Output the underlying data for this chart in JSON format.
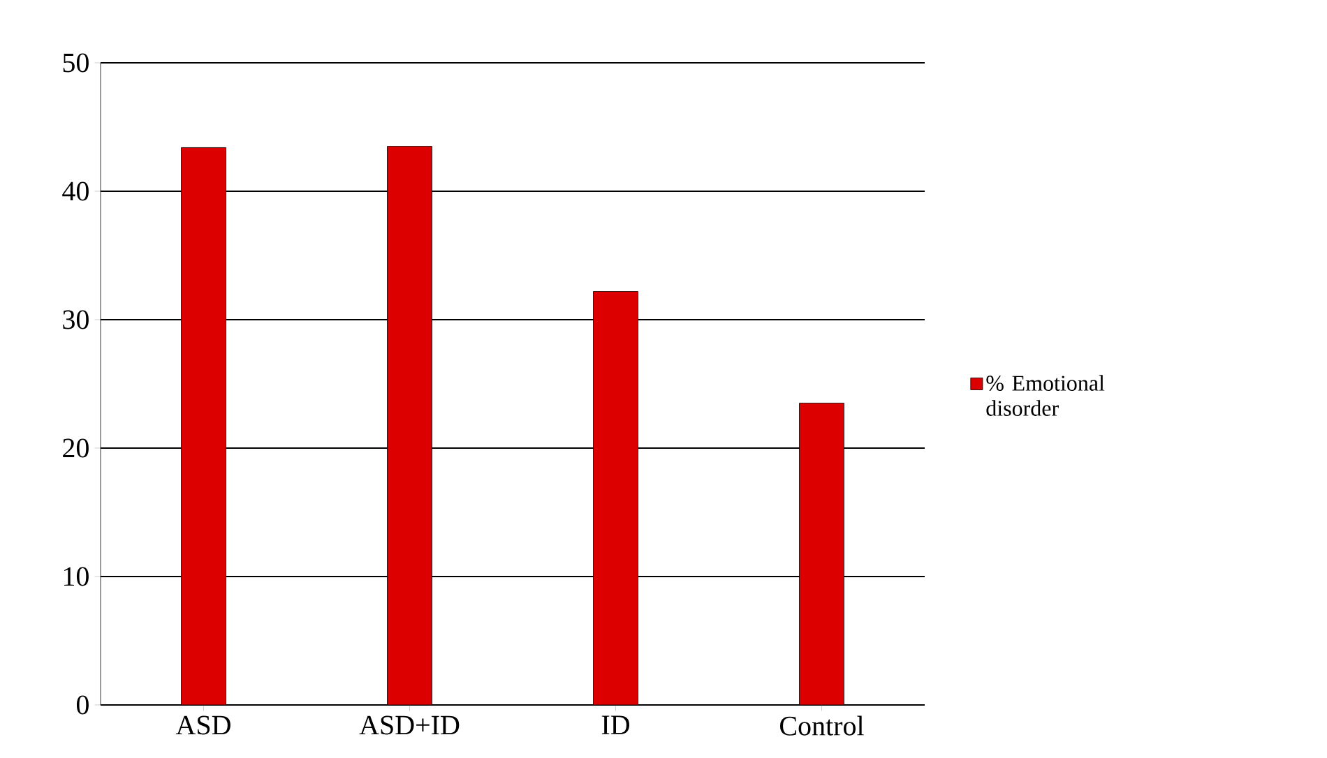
{
  "chart_data": {
    "type": "bar",
    "categories": [
      "ASD",
      "ASD+ID",
      "ID",
      "Control"
    ],
    "series": [
      {
        "name": "% Emotional disorder",
        "color": "#dd0000",
        "values": [
          43.4,
          43.5,
          32.2,
          23.5
        ]
      }
    ],
    "ylim": [
      0,
      50
    ],
    "yticks": [
      0,
      10,
      20,
      30,
      40,
      50
    ],
    "grid": "y",
    "legend": "right"
  }
}
